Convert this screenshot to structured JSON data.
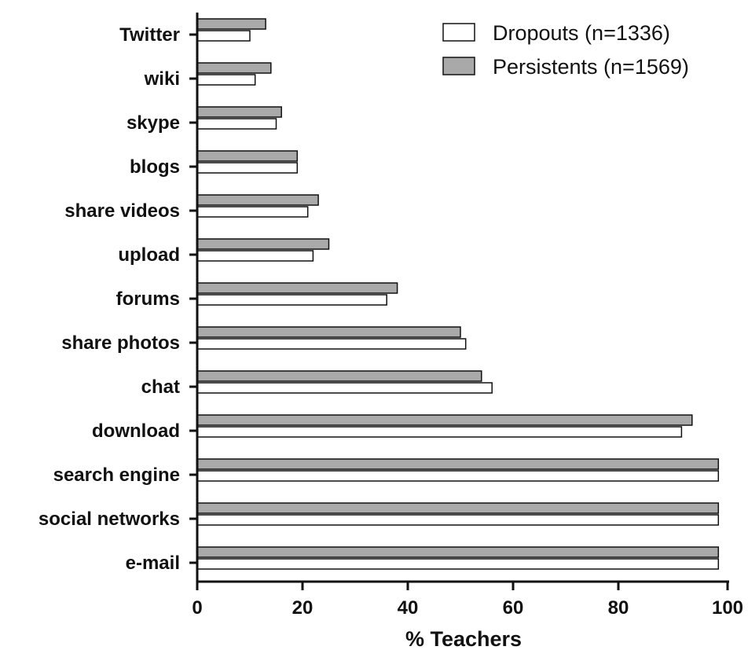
{
  "chart_data": {
    "type": "bar",
    "orientation": "horizontal",
    "categories": [
      "Twitter",
      "wiki",
      "skype",
      "blogs",
      "share videos",
      "upload",
      "forums",
      "share photos",
      "chat",
      "download",
      "search engine",
      "social networks",
      "e-mail"
    ],
    "series": [
      {
        "name": "Persistents (n=1569)",
        "color": "#a9a9a9",
        "values": [
          13,
          14,
          16,
          19,
          23,
          25,
          38,
          50,
          54,
          94,
          99,
          99,
          99
        ]
      },
      {
        "name": "Dropouts (n=1336)",
        "color": "#ffffff",
        "values": [
          10,
          11,
          15,
          19,
          21,
          22,
          36,
          51,
          56,
          92,
          99,
          99,
          99
        ]
      }
    ],
    "xlabel": "% Teachers",
    "xlim": [
      0,
      100
    ],
    "xticks": [
      "0",
      "20",
      "40",
      "60",
      "80",
      "100"
    ],
    "legend": {
      "position": "top-right",
      "entries": [
        {
          "label": "Dropouts (n=1336)",
          "color": "#ffffff"
        },
        {
          "label": "Persistents (n=1569)",
          "color": "#a9a9a9"
        }
      ]
    },
    "grid": false
  }
}
